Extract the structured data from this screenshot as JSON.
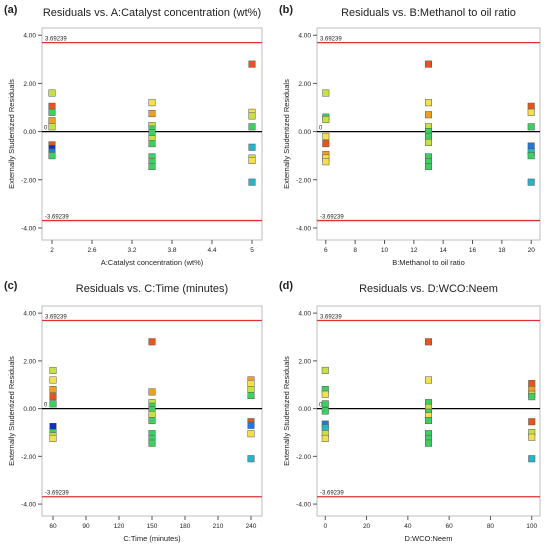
{
  "colors": {
    "limit_line": "#e03030",
    "zero_line": "#000000",
    "frame": "#bdbdbd",
    "point_palette": [
      "#e8541c",
      "#f0a020",
      "#f4e04c",
      "#c8e040",
      "#3cd060",
      "#28b4c8",
      "#2078e0",
      "#1030c0"
    ]
  },
  "chart_data": [
    {
      "type": "scatter",
      "panel_label": "(a)",
      "title": "Residuals vs. A:Catalyst concentration (wt%)",
      "xlabel": "A:Catalyst concentration (wt%)",
      "ylabel": "Externally Studentized Residuals",
      "xlim": [
        1.85,
        5.15
      ],
      "ylim": [
        -4.5,
        4.3
      ],
      "xticks": [
        2,
        2.6,
        3.2,
        3.8,
        4.4,
        5
      ],
      "xtick_labels": [
        "2",
        "2.6",
        "3.2",
        "3.8",
        "4.4",
        "5"
      ],
      "yticks": [
        -4,
        -2,
        0,
        2,
        4
      ],
      "ytick_labels": [
        "-4.00",
        "-2.00",
        "0.00",
        "2.00",
        "4.00"
      ],
      "limits": [
        3.69239,
        -3.69239
      ],
      "limit_labels": [
        "3.69239",
        "-3.69239"
      ],
      "zero_label": "0",
      "grid": false,
      "points": [
        {
          "x": 2,
          "y": 1.6,
          "c": 3
        },
        {
          "x": 2,
          "y": 1.05,
          "c": 0
        },
        {
          "x": 2,
          "y": 0.8,
          "c": 4
        },
        {
          "x": 2,
          "y": 0.45,
          "c": 1
        },
        {
          "x": 2,
          "y": 0.2,
          "c": 3
        },
        {
          "x": 2,
          "y": -0.55,
          "c": 0
        },
        {
          "x": 2,
          "y": -0.7,
          "c": 7
        },
        {
          "x": 2,
          "y": -0.85,
          "c": 6
        },
        {
          "x": 2,
          "y": -1.0,
          "c": 4
        },
        {
          "x": 3.5,
          "y": 1.2,
          "c": 2
        },
        {
          "x": 3.5,
          "y": 0.75,
          "c": 1
        },
        {
          "x": 3.5,
          "y": 0.25,
          "c": 3
        },
        {
          "x": 3.5,
          "y": 0.1,
          "c": 4
        },
        {
          "x": 3.5,
          "y": -0.05,
          "c": 4
        },
        {
          "x": 3.5,
          "y": -0.3,
          "c": 3
        },
        {
          "x": 3.5,
          "y": -0.5,
          "c": 4
        },
        {
          "x": 3.5,
          "y": -1.05,
          "c": 4
        },
        {
          "x": 3.5,
          "y": -1.25,
          "c": 4
        },
        {
          "x": 3.5,
          "y": -1.45,
          "c": 4
        },
        {
          "x": 5,
          "y": 2.8,
          "c": 0
        },
        {
          "x": 5,
          "y": 0.8,
          "c": 2
        },
        {
          "x": 5,
          "y": 0.65,
          "c": 3
        },
        {
          "x": 5,
          "y": 0.2,
          "c": 4
        },
        {
          "x": 5,
          "y": -0.65,
          "c": 5
        },
        {
          "x": 5,
          "y": -1.1,
          "c": 3
        },
        {
          "x": 5,
          "y": -1.2,
          "c": 2
        },
        {
          "x": 5,
          "y": -2.1,
          "c": 5
        }
      ]
    },
    {
      "type": "scatter",
      "panel_label": "(b)",
      "title": "Residuals vs. B:Methanol to oil ratio",
      "xlabel": "B:Methanol to oil ratio",
      "ylabel": "Externally Studentized Residuals",
      "xlim": [
        5.4,
        20.6
      ],
      "ylim": [
        -4.5,
        4.3
      ],
      "xticks": [
        6,
        8,
        10,
        12,
        14,
        16,
        18,
        20
      ],
      "xtick_labels": [
        "6",
        "8",
        "10",
        "12",
        "14",
        "16",
        "18",
        "20"
      ],
      "yticks": [
        -4,
        -2,
        0,
        2,
        4
      ],
      "ytick_labels": [
        "-4.00",
        "-2.00",
        "0.00",
        "2.00",
        "4.00"
      ],
      "limits": [
        3.69239,
        -3.69239
      ],
      "limit_labels": [
        "3.69239",
        "-3.69239"
      ],
      "zero_label": "0",
      "grid": false,
      "points": [
        {
          "x": 6,
          "y": 1.6,
          "c": 3
        },
        {
          "x": 6,
          "y": 0.6,
          "c": 4
        },
        {
          "x": 6,
          "y": 0.5,
          "c": 3
        },
        {
          "x": 6,
          "y": -0.2,
          "c": 2
        },
        {
          "x": 6,
          "y": -0.5,
          "c": 0
        },
        {
          "x": 6,
          "y": -0.95,
          "c": 1
        },
        {
          "x": 6,
          "y": -1.1,
          "c": 2
        },
        {
          "x": 6,
          "y": -1.25,
          "c": 2
        },
        {
          "x": 13,
          "y": 2.8,
          "c": 0
        },
        {
          "x": 13,
          "y": 1.2,
          "c": 2
        },
        {
          "x": 13,
          "y": 0.7,
          "c": 1
        },
        {
          "x": 13,
          "y": 0.2,
          "c": 3
        },
        {
          "x": 13,
          "y": 0.0,
          "c": 4
        },
        {
          "x": 13,
          "y": -0.2,
          "c": 4
        },
        {
          "x": 13,
          "y": -0.45,
          "c": 3
        },
        {
          "x": 13,
          "y": -1.05,
          "c": 4
        },
        {
          "x": 13,
          "y": -1.25,
          "c": 4
        },
        {
          "x": 13,
          "y": -1.45,
          "c": 4
        },
        {
          "x": 20,
          "y": 1.05,
          "c": 0
        },
        {
          "x": 20,
          "y": 0.8,
          "c": 2
        },
        {
          "x": 20,
          "y": 0.2,
          "c": 4
        },
        {
          "x": 20,
          "y": -0.6,
          "c": 6
        },
        {
          "x": 20,
          "y": -0.85,
          "c": 5
        },
        {
          "x": 20,
          "y": -1.0,
          "c": 4
        },
        {
          "x": 20,
          "y": -2.1,
          "c": 5
        }
      ]
    },
    {
      "type": "scatter",
      "panel_label": "(c)",
      "title": "Residuals vs. C:Time (minutes)",
      "xlabel": "C:Time (minutes)",
      "ylabel": "Externally Studentized Residuals",
      "xlim": [
        50,
        250
      ],
      "ylim": [
        -4.5,
        4.3
      ],
      "xticks": [
        60,
        90,
        120,
        150,
        180,
        210,
        240
      ],
      "xtick_labels": [
        "60",
        "90",
        "120",
        "150",
        "180",
        "210",
        "240"
      ],
      "yticks": [
        -4,
        -2,
        0,
        2,
        4
      ],
      "ytick_labels": [
        "-4.00",
        "-2.00",
        "0.00",
        "2.00",
        "4.00"
      ],
      "limits": [
        3.69239,
        -3.69239
      ],
      "limit_labels": [
        "3.69239",
        "-3.69239"
      ],
      "zero_label": "0",
      "grid": false,
      "points": [
        {
          "x": 60,
          "y": 1.6,
          "c": 3
        },
        {
          "x": 60,
          "y": 1.2,
          "c": 2
        },
        {
          "x": 60,
          "y": 0.8,
          "c": 1
        },
        {
          "x": 60,
          "y": 0.5,
          "c": 0
        },
        {
          "x": 60,
          "y": 0.2,
          "c": 4
        },
        {
          "x": 60,
          "y": -0.75,
          "c": 7
        },
        {
          "x": 60,
          "y": -1.0,
          "c": 4
        },
        {
          "x": 60,
          "y": -1.15,
          "c": 3
        },
        {
          "x": 60,
          "y": -1.25,
          "c": 2
        },
        {
          "x": 150,
          "y": 2.8,
          "c": 0
        },
        {
          "x": 150,
          "y": 0.7,
          "c": 1
        },
        {
          "x": 150,
          "y": 0.25,
          "c": 3
        },
        {
          "x": 150,
          "y": 0.1,
          "c": 4
        },
        {
          "x": 150,
          "y": -0.05,
          "c": 4
        },
        {
          "x": 150,
          "y": -0.25,
          "c": 3
        },
        {
          "x": 150,
          "y": -0.5,
          "c": 4
        },
        {
          "x": 150,
          "y": -1.05,
          "c": 4
        },
        {
          "x": 150,
          "y": -1.25,
          "c": 4
        },
        {
          "x": 150,
          "y": -1.45,
          "c": 4
        },
        {
          "x": 240,
          "y": 1.2,
          "c": 1
        },
        {
          "x": 240,
          "y": 1.05,
          "c": 2
        },
        {
          "x": 240,
          "y": 0.8,
          "c": 3
        },
        {
          "x": 240,
          "y": 0.55,
          "c": 4
        },
        {
          "x": 240,
          "y": -0.55,
          "c": 0
        },
        {
          "x": 240,
          "y": -0.7,
          "c": 6
        },
        {
          "x": 240,
          "y": -1.05,
          "c": 2
        },
        {
          "x": 240,
          "y": -2.1,
          "c": 5
        }
      ]
    },
    {
      "type": "scatter",
      "panel_label": "(d)",
      "title": "Residuals vs. D:WCO:Neem",
      "xlabel": "D:WCO:Neem",
      "ylabel": "Externally Studentized Residuals",
      "xlim": [
        -4,
        104
      ],
      "ylim": [
        -4.5,
        4.3
      ],
      "xticks": [
        0,
        20,
        40,
        60,
        80,
        100
      ],
      "xtick_labels": [
        "0",
        "20",
        "40",
        "60",
        "80",
        "100"
      ],
      "yticks": [
        -4,
        -2,
        0,
        2,
        4
      ],
      "ytick_labels": [
        "-4.00",
        "-2.00",
        "0.00",
        "2.00",
        "4.00"
      ],
      "limits": [
        3.69239,
        -3.69239
      ],
      "limit_labels": [
        "3.69239",
        "-3.69239"
      ],
      "zero_label": "0",
      "grid": false,
      "points": [
        {
          "x": 0,
          "y": 1.6,
          "c": 3
        },
        {
          "x": 0,
          "y": 0.8,
          "c": 4
        },
        {
          "x": 0,
          "y": 0.6,
          "c": 2
        },
        {
          "x": 0,
          "y": 0.2,
          "c": 4
        },
        {
          "x": 0,
          "y": -0.1,
          "c": 4
        },
        {
          "x": 0,
          "y": -0.65,
          "c": 6
        },
        {
          "x": 0,
          "y": -0.8,
          "c": 5
        },
        {
          "x": 0,
          "y": -1.05,
          "c": 3
        },
        {
          "x": 0,
          "y": -1.25,
          "c": 2
        },
        {
          "x": 50,
          "y": 2.8,
          "c": 0
        },
        {
          "x": 50,
          "y": 1.2,
          "c": 2
        },
        {
          "x": 50,
          "y": 0.25,
          "c": 4
        },
        {
          "x": 50,
          "y": 0.05,
          "c": 3
        },
        {
          "x": 50,
          "y": -0.15,
          "c": 4
        },
        {
          "x": 50,
          "y": -0.3,
          "c": 2
        },
        {
          "x": 50,
          "y": -0.5,
          "c": 4
        },
        {
          "x": 50,
          "y": -1.05,
          "c": 4
        },
        {
          "x": 50,
          "y": -1.25,
          "c": 4
        },
        {
          "x": 50,
          "y": -1.45,
          "c": 4
        },
        {
          "x": 100,
          "y": 1.05,
          "c": 0
        },
        {
          "x": 100,
          "y": 0.8,
          "c": 1
        },
        {
          "x": 100,
          "y": 0.6,
          "c": 3
        },
        {
          "x": 100,
          "y": 0.5,
          "c": 4
        },
        {
          "x": 100,
          "y": -0.55,
          "c": 0
        },
        {
          "x": 100,
          "y": -1.0,
          "c": 3
        },
        {
          "x": 100,
          "y": -1.2,
          "c": 2
        },
        {
          "x": 100,
          "y": -2.1,
          "c": 5
        }
      ]
    }
  ]
}
